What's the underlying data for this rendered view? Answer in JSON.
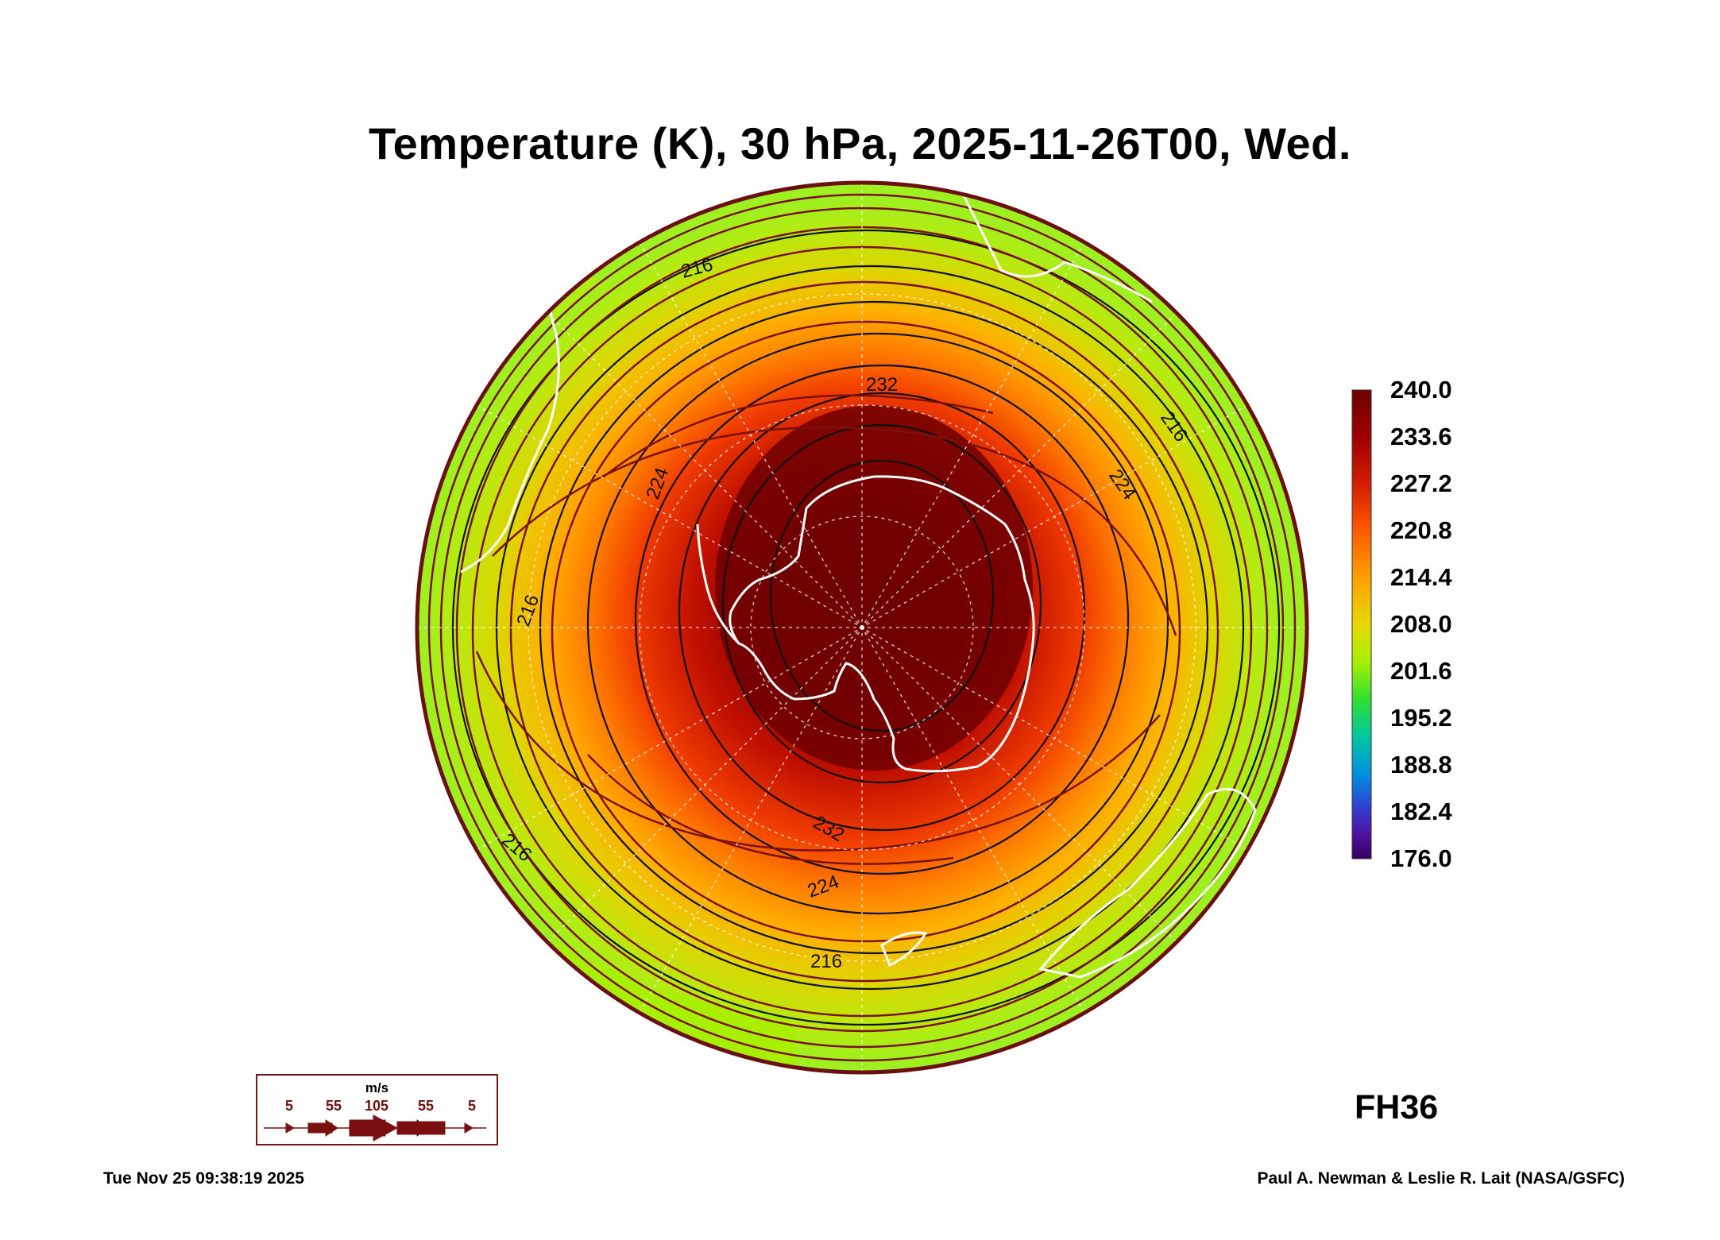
{
  "title": "Temperature (K), 30 hPa, 2025-11-26T00, Wed.",
  "forecast_hour": "FH36",
  "footer": {
    "timestamp": "Tue Nov 25 09:38:19 2025",
    "credit": "Paul A. Newman & Leslie R. Lait (NASA/GSFC)"
  },
  "colorbar": {
    "labels": [
      "240.0",
      "233.6",
      "227.2",
      "220.8",
      "214.4",
      "208.0",
      "201.6",
      "195.2",
      "188.8",
      "182.4",
      "176.0"
    ],
    "colors": [
      "#6b0000",
      "#a00000",
      "#d41c00",
      "#ff5a00",
      "#ffa000",
      "#e8d800",
      "#a8f000",
      "#30e030",
      "#00c8a0",
      "#0090e0",
      "#3040d0",
      "#5010a0",
      "#300060"
    ]
  },
  "contour_labels": [
    "232",
    "232",
    "224",
    "224",
    "224",
    "216",
    "216",
    "216",
    "216",
    "216"
  ],
  "wind_legend": {
    "unit": "m/s",
    "values": [
      "5",
      "55",
      "105",
      "55",
      "5"
    ]
  }
}
